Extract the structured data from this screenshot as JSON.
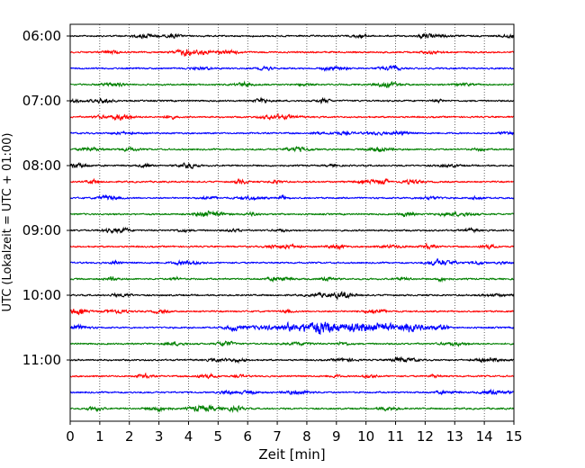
{
  "chart_data": {
    "type": "line",
    "title": "",
    "xlabel": "Zeit  [min]",
    "ylabel": "UTC (Lokalzeit = UTC + 01:00)",
    "xlim": [
      0,
      15
    ],
    "xticks": [
      0,
      1,
      2,
      3,
      4,
      5,
      6,
      7,
      8,
      9,
      10,
      11,
      12,
      13,
      14,
      15
    ],
    "ytick_labels": [
      "06:00",
      "07:00",
      "08:00",
      "09:00",
      "10:00",
      "11:00"
    ],
    "trace_start_times": [
      "06:00",
      "06:15",
      "06:30",
      "06:45",
      "07:00",
      "07:15",
      "07:30",
      "07:45",
      "08:00",
      "08:15",
      "08:30",
      "08:45",
      "09:00",
      "09:15",
      "09:30",
      "09:45",
      "10:00",
      "10:15",
      "10:30",
      "10:45",
      "11:00",
      "11:15",
      "11:30",
      "11:45"
    ],
    "trace_color_cycle": [
      "#000000",
      "#ff0000",
      "#0000ff",
      "#008000"
    ],
    "event_trace": "10:30",
    "event_window_min": [
      5,
      12.8
    ],
    "grid_x": true,
    "grid_style": "dotted"
  }
}
